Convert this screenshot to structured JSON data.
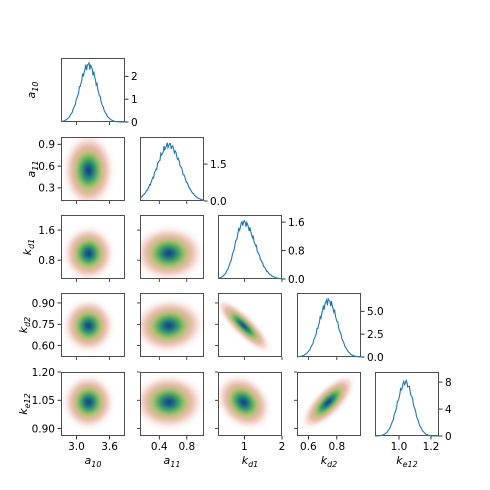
{
  "chart_data": {
    "type": "corner",
    "parameters": [
      "a10",
      "a11",
      "kd1",
      "kd2",
      "ke12"
    ],
    "parameter_labels": [
      {
        "main": "a",
        "sub": "10"
      },
      {
        "main": "a",
        "sub": "11"
      },
      {
        "main": "k",
        "sub": "d1"
      },
      {
        "main": "k",
        "sub": "d2"
      },
      {
        "main": "k",
        "sub": "e12"
      }
    ],
    "x_axes": [
      {
        "range": [
          2.72,
          3.88
        ],
        "ticks": [
          3.0,
          3.6
        ],
        "tick_labels": [
          "3.0",
          "3.6"
        ]
      },
      {
        "range": [
          0.12,
          1.05
        ],
        "ticks": [
          0.4,
          0.8
        ],
        "tick_labels": [
          "0.4",
          "0.8"
        ]
      },
      {
        "range": [
          0.3,
          2.0
        ],
        "ticks": [
          1,
          2
        ],
        "tick_labels": [
          "1",
          "2"
        ]
      },
      {
        "range": [
          0.52,
          0.97
        ],
        "ticks": [
          0.6,
          0.8
        ],
        "tick_labels": [
          "0.6",
          "0.8"
        ]
      },
      {
        "range": [
          0.85,
          1.25
        ],
        "ticks": [
          1.0,
          1.2
        ],
        "tick_labels": [
          "1.0",
          "1.2"
        ]
      }
    ],
    "y_axes": [
      null,
      {
        "range": [
          0.12,
          1.0
        ],
        "ticks": [
          0.3,
          0.6,
          0.9
        ],
        "tick_labels": [
          "0.3",
          "0.6",
          "0.9"
        ]
      },
      {
        "range": [
          0.3,
          2.0
        ],
        "ticks": [
          0.8,
          1.6
        ],
        "tick_labels": [
          "0.8",
          "1.6"
        ]
      },
      {
        "range": [
          0.52,
          0.97
        ],
        "ticks": [
          0.6,
          0.75,
          0.9
        ],
        "tick_labels": [
          "0.60",
          "0.75",
          "0.90"
        ]
      },
      {
        "range": [
          0.86,
          1.2
        ],
        "ticks": [
          0.9,
          1.05,
          1.2
        ],
        "tick_labels": [
          "0.90",
          "1.05",
          "1.20"
        ]
      }
    ],
    "marginals": [
      {
        "param": "a10",
        "mean": 3.22,
        "sd": 0.16,
        "density_ticks": [
          0,
          1,
          2
        ],
        "density_tick_labels": [
          "0",
          "1",
          "2"
        ],
        "density_max": 2.8
      },
      {
        "param": "a11",
        "mean": 0.54,
        "sd": 0.175,
        "density_ticks": [
          0.0,
          1.5
        ],
        "density_tick_labels": [
          "0.0",
          "1.5"
        ],
        "density_max": 2.6
      },
      {
        "param": "kd1",
        "mean": 0.98,
        "sd": 0.25,
        "skew": 0.25,
        "density_ticks": [
          0.0,
          0.8,
          1.6
        ],
        "density_tick_labels": [
          "0.0",
          "0.8",
          "1.6"
        ],
        "density_max": 1.8
      },
      {
        "param": "kd2",
        "mean": 0.74,
        "sd": 0.065,
        "density_ticks": [
          0.0,
          2.5,
          5.0
        ],
        "density_tick_labels": [
          "0.0",
          "2.5",
          "5.0"
        ],
        "density_max": 7.0
      },
      {
        "param": "ke12",
        "mean": 1.04,
        "sd": 0.05,
        "density_ticks": [
          0,
          4,
          8
        ],
        "density_tick_labels": [
          "0",
          "4",
          "8"
        ],
        "density_max": 9.5
      }
    ],
    "joint_correlations": [
      {
        "x": "a10",
        "y": "a11",
        "rho": 0.0
      },
      {
        "x": "a10",
        "y": "kd1",
        "rho": 0.0
      },
      {
        "x": "a11",
        "y": "kd1",
        "rho": 0.0
      },
      {
        "x": "a10",
        "y": "kd2",
        "rho": 0.0
      },
      {
        "x": "a11",
        "y": "kd2",
        "rho": 0.05
      },
      {
        "x": "kd1",
        "y": "kd2",
        "rho": -0.85
      },
      {
        "x": "a10",
        "y": "ke12",
        "rho": 0.0
      },
      {
        "x": "a11",
        "y": "ke12",
        "rho": 0.0
      },
      {
        "x": "kd1",
        "y": "ke12",
        "rho": -0.25
      },
      {
        "x": "kd2",
        "y": "ke12",
        "rho": 0.75
      }
    ],
    "colormap": [
      "#fdf6f2",
      "#f3d6cf",
      "#e5b69e",
      "#c9c08a",
      "#8fbf5e",
      "#4da860",
      "#1f8a74",
      "#1c5e8a",
      "#1a2f7a"
    ],
    "marginal_line_color": "#1f77b4",
    "grid": false
  }
}
